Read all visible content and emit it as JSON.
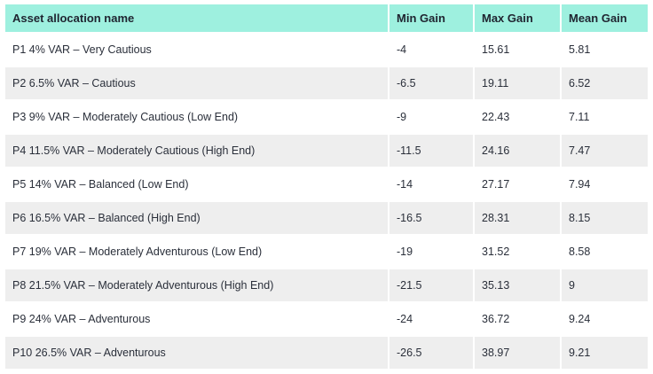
{
  "table": {
    "headers": [
      "Asset allocation name",
      "Min Gain",
      "Max Gain",
      "Mean Gain"
    ],
    "rows": [
      [
        "P1 4% VAR – Very Cautious",
        "-4",
        "15.61",
        "5.81"
      ],
      [
        "P2 6.5% VAR – Cautious",
        "-6.5",
        "19.11",
        "6.52"
      ],
      [
        "P3 9% VAR – Moderately Cautious (Low End)",
        "-9",
        "22.43",
        "7.11"
      ],
      [
        "P4 11.5% VAR – Moderately Cautious (High End)",
        "-11.5",
        "24.16",
        "7.47"
      ],
      [
        "P5 14% VAR – Balanced (Low End)",
        "-14",
        "27.17",
        "7.94"
      ],
      [
        "P6 16.5% VAR – Balanced (High End)",
        "-16.5",
        "28.31",
        "8.15"
      ],
      [
        "P7 19% VAR – Moderately Adventurous (Low End)",
        "-19",
        "31.52",
        "8.58"
      ],
      [
        "P8 21.5% VAR – Moderately Adventurous (High End)",
        "-21.5",
        "35.13",
        "9"
      ],
      [
        "P9 24% VAR – Adventurous",
        "-24",
        "36.72",
        "9.24"
      ],
      [
        "P10 26.5% VAR – Adventurous",
        "-26.5",
        "38.97",
        "9.21"
      ]
    ]
  },
  "colors": {
    "header_background": "#9ef0df",
    "stripe_background": "#eeeeee",
    "row_background": "#ffffff"
  }
}
